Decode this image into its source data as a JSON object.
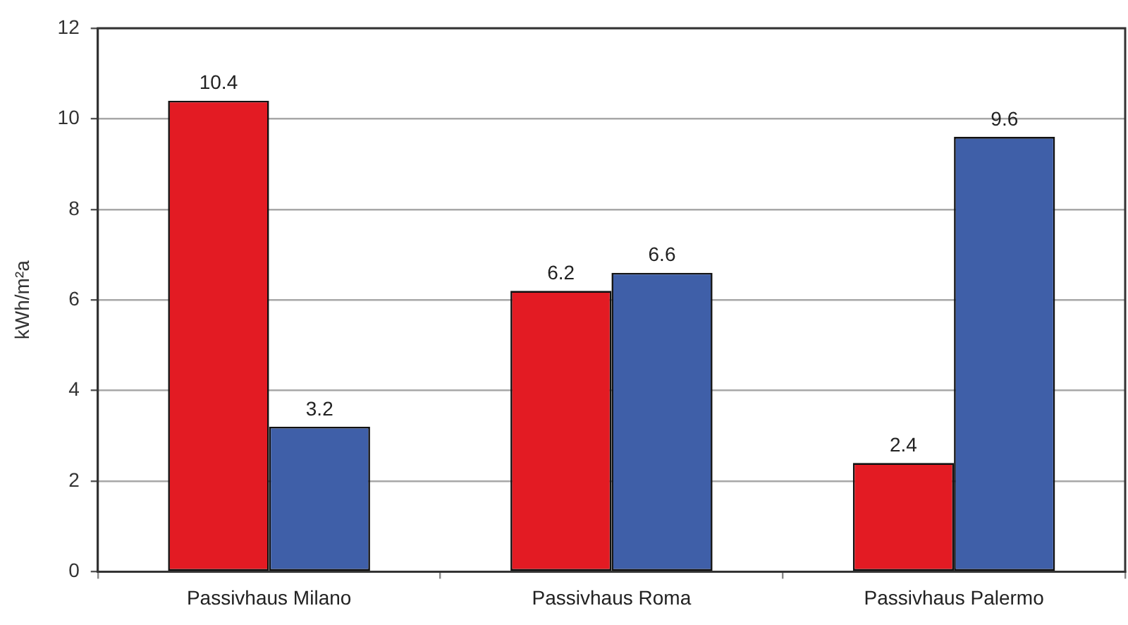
{
  "chart_data": {
    "type": "bar",
    "ylabel": "kWh/m²a",
    "categories": [
      "Passivhaus Milano",
      "Passivhaus Roma",
      "Passivhaus Palermo"
    ],
    "series": [
      {
        "color": "#e31b23",
        "values": [
          10.4,
          6.2,
          2.4
        ]
      },
      {
        "color": "#3f5fa8",
        "values": [
          3.2,
          6.6,
          9.6
        ]
      }
    ],
    "ylim": [
      0,
      12
    ],
    "yticks": [
      0,
      2,
      4,
      6,
      8,
      10,
      12
    ],
    "grid": "y",
    "data_labels": true
  }
}
